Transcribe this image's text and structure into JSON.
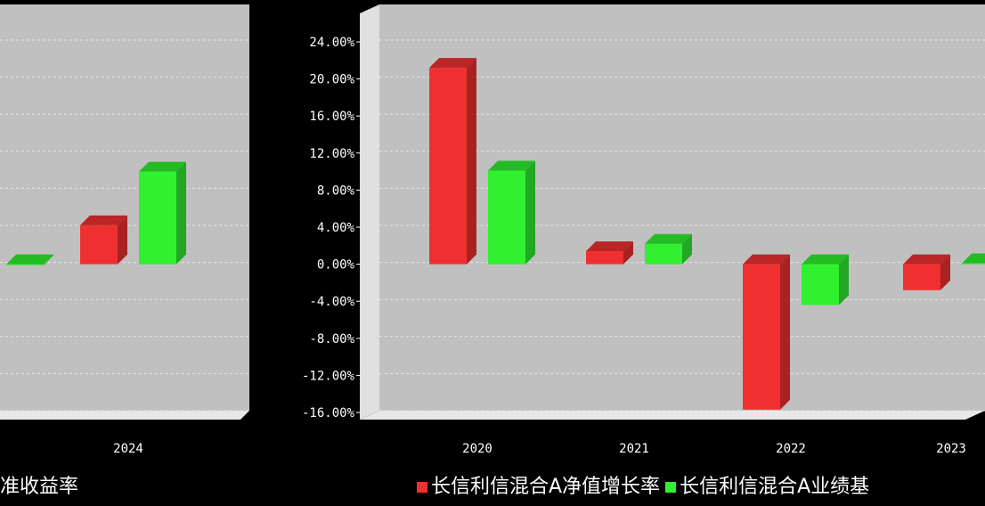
{
  "chart_data": [
    {
      "type": "bar",
      "panel": "left (cropped)",
      "categories": [
        "",
        "2024"
      ],
      "series": [
        {
          "values": [
            null,
            4.2
          ]
        },
        {
          "values": [
            0.0,
            10.0
          ]
        }
      ],
      "ylim": [
        -16.0,
        24.0
      ],
      "grid": true,
      "legend_text": "准收益率"
    },
    {
      "type": "bar",
      "panel": "right",
      "categories": [
        "2020",
        "2021",
        "2022",
        "2023"
      ],
      "series": [
        {
          "name": "长信利信混合A净值增长率",
          "values": [
            21.2,
            1.4,
            -15.7,
            -2.8
          ]
        },
        {
          "name": "长信利信混合A业绩基",
          "values": [
            10.1,
            2.2,
            -4.4,
            0.1
          ]
        }
      ],
      "yticks": [
        "24.00%",
        "20.00%",
        "16.00%",
        "12.00%",
        "8.00%",
        "4.00%",
        "0.00%",
        "-4.00%",
        "-8.00%",
        "-12.00%",
        "-16.00%"
      ],
      "ylim": [
        -16.0,
        24.0
      ],
      "grid": true,
      "legend_position": "bottom"
    }
  ],
  "colors": {
    "series_red": "#f03030",
    "series_green": "#30f030",
    "plot_bg": "#c0c0c0",
    "page_bg": "#000000"
  }
}
